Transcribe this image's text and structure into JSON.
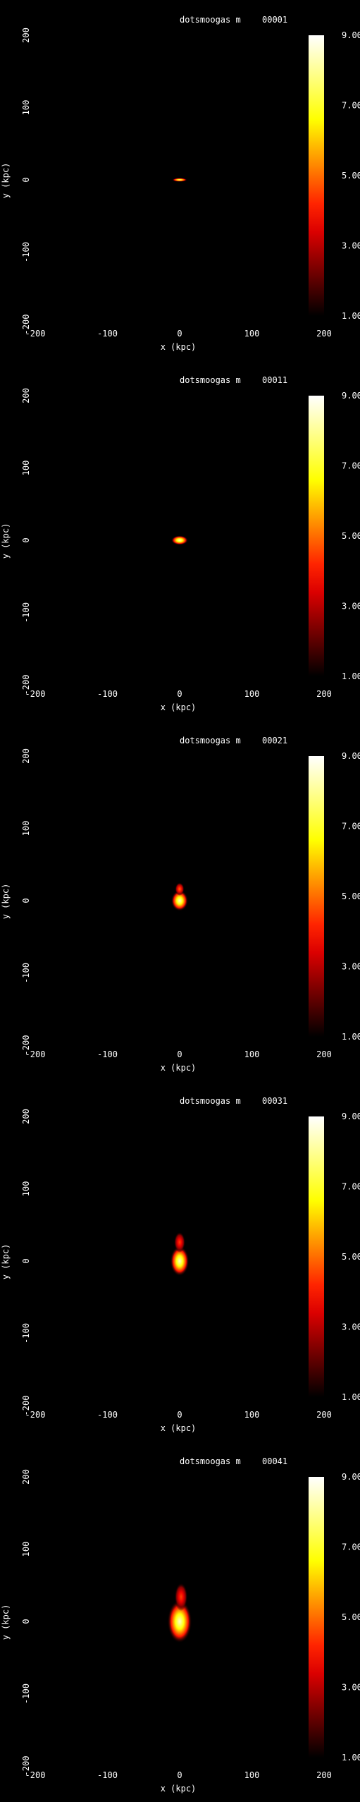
{
  "panels": [
    {
      "title": "dotsmoogas m",
      "frame": "00001",
      "chart_data": {
        "type": "heatmap",
        "xlabel": "x (kpc)",
        "ylabel": "y (kpc)",
        "xlim": [
          -200,
          200
        ],
        "ylim": [
          -200,
          200
        ],
        "xticks": [
          "-200",
          "-100",
          "0",
          "100",
          "200"
        ],
        "yticks": [
          "200",
          "100",
          "0",
          "-100",
          "-200"
        ],
        "colorbar": {
          "min": 1.0,
          "max": 9.0,
          "ticks": [
            "9.00",
            "7.00",
            "5.00",
            "3.00",
            "1.00"
          ]
        },
        "blobs": [
          {
            "x": 0,
            "y": 0,
            "width_kpc": 16,
            "height_kpc": 4,
            "peak": 8
          }
        ]
      }
    },
    {
      "title": "dotsmoogas m",
      "frame": "00011",
      "chart_data": {
        "type": "heatmap",
        "xlabel": "x (kpc)",
        "ylabel": "y (kpc)",
        "xlim": [
          -200,
          200
        ],
        "ylim": [
          -200,
          200
        ],
        "xticks": [
          "-200",
          "-100",
          "0",
          "100",
          "200"
        ],
        "yticks": [
          "200",
          "100",
          "0",
          "-100",
          "-200"
        ],
        "colorbar": {
          "min": 1.0,
          "max": 9.0,
          "ticks": [
            "9.00",
            "7.00",
            "5.00",
            "3.00",
            "1.00"
          ]
        },
        "blobs": [
          {
            "x": 0,
            "y": 0,
            "width_kpc": 18,
            "height_kpc": 10,
            "peak": 8.5
          }
        ]
      }
    },
    {
      "title": "dotsmoogas m",
      "frame": "00021",
      "chart_data": {
        "type": "heatmap",
        "xlabel": "x (kpc)",
        "ylabel": "y (kpc)",
        "xlim": [
          -200,
          200
        ],
        "ylim": [
          -200,
          200
        ],
        "xticks": [
          "-200",
          "-100",
          "0",
          "100",
          "200"
        ],
        "yticks": [
          "200",
          "100",
          "0",
          "-100",
          "-200"
        ],
        "colorbar": {
          "min": 1.0,
          "max": 9.0,
          "ticks": [
            "9.00",
            "7.00",
            "5.00",
            "3.00",
            "1.00"
          ]
        },
        "blobs": [
          {
            "x": 0,
            "y": 0,
            "width_kpc": 18,
            "height_kpc": 22,
            "peak": 8.5
          },
          {
            "x": 0,
            "y": 16,
            "width_kpc": 10,
            "height_kpc": 14,
            "peak": 5
          }
        ]
      }
    },
    {
      "title": "dotsmoogas m",
      "frame": "00031",
      "chart_data": {
        "type": "heatmap",
        "xlabel": "x (kpc)",
        "ylabel": "y (kpc)",
        "xlim": [
          -200,
          200
        ],
        "ylim": [
          -200,
          200
        ],
        "xticks": [
          "-200",
          "-100",
          "0",
          "100",
          "200"
        ],
        "yticks": [
          "200",
          "100",
          "0",
          "-100",
          "-200"
        ],
        "colorbar": {
          "min": 1.0,
          "max": 9.0,
          "ticks": [
            "9.00",
            "7.00",
            "5.00",
            "3.00",
            "1.00"
          ]
        },
        "blobs": [
          {
            "x": 0,
            "y": 0,
            "width_kpc": 20,
            "height_kpc": 32,
            "peak": 8.5
          },
          {
            "x": 0,
            "y": 26,
            "width_kpc": 12,
            "height_kpc": 22,
            "peak": 4.5
          }
        ]
      }
    },
    {
      "title": "dotsmoogas m",
      "frame": "00041",
      "chart_data": {
        "type": "heatmap",
        "xlabel": "x (kpc)",
        "ylabel": "y (kpc)",
        "xlim": [
          -200,
          200
        ],
        "ylim": [
          -200,
          200
        ],
        "xticks": [
          "-200",
          "-100",
          "0",
          "100",
          "200"
        ],
        "yticks": [
          "200",
          "100",
          "0",
          "-100",
          "-200"
        ],
        "colorbar": {
          "min": 1.0,
          "max": 9.0,
          "ticks": [
            "9.00",
            "7.00",
            "5.00",
            "3.00",
            "1.00"
          ]
        },
        "blobs": [
          {
            "x": 0,
            "y": 0,
            "width_kpc": 26,
            "height_kpc": 46,
            "peak": 8.5
          },
          {
            "x": 2,
            "y": 34,
            "width_kpc": 14,
            "height_kpc": 30,
            "peak": 4.5
          }
        ]
      }
    }
  ]
}
